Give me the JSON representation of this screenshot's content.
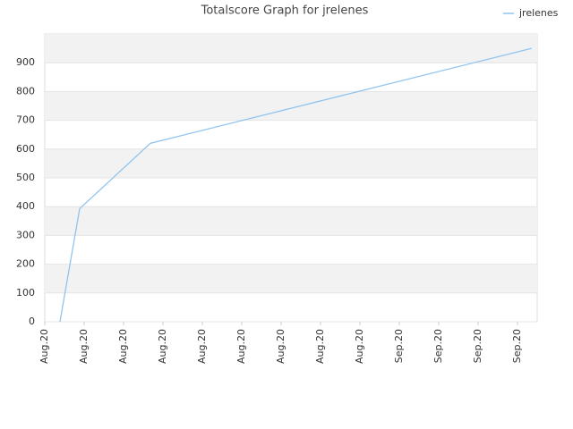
{
  "chart_data": {
    "type": "line",
    "title": "Totalscore Graph for jrelenes",
    "x": [
      0.386,
      0.886,
      2.68,
      12.36
    ],
    "series": [
      {
        "name": "jrelenes",
        "color": "#90c4f0",
        "values": [
          0,
          393,
          620,
          950
        ]
      }
    ],
    "xlim": [
      0,
      12.5
    ],
    "xticks": [
      {
        "value": 0,
        "label": "Aug.20"
      },
      {
        "value": 1,
        "label": "Aug.20"
      },
      {
        "value": 2,
        "label": "Aug.20"
      },
      {
        "value": 3,
        "label": "Aug.20"
      },
      {
        "value": 4,
        "label": "Aug.20"
      },
      {
        "value": 5,
        "label": "Aug.20"
      },
      {
        "value": 6,
        "label": "Aug.20"
      },
      {
        "value": 7,
        "label": "Aug.20"
      },
      {
        "value": 8,
        "label": "Aug.20"
      },
      {
        "value": 9,
        "label": "Sep.20"
      },
      {
        "value": 10,
        "label": "Sep.20"
      },
      {
        "value": 11,
        "label": "Sep.20"
      },
      {
        "value": 12,
        "label": "Sep.20"
      }
    ],
    "ylim": [
      0,
      1000
    ],
    "yticks": [
      0,
      100,
      200,
      300,
      400,
      500,
      600,
      700,
      800,
      900
    ],
    "grid": true,
    "legend": "top-right"
  }
}
